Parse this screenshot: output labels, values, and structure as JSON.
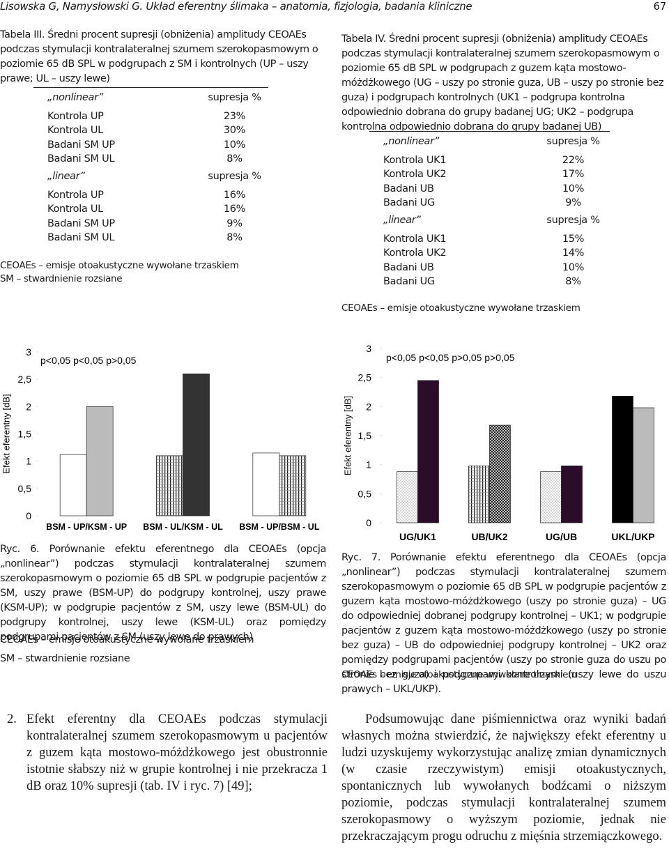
{
  "header": {
    "text": "Lisowska G, Namysłowski G.  Układ eferentny ślimaka – anatomia, fizjologia, badania kliniczne",
    "page": "67"
  },
  "table3": {
    "caption": "Tabela III. Średni procent supresji (obniżenia) amplitudy CEOAEs podczas stymulacji kontralateralnej szumem szerokopasmowym o poziomie 65 dB SPL w podgrupach z SM i kontrolnych (UP – uszy prawe; UL – uszy lewe)",
    "sections": [
      {
        "head": [
          "„nonlinear”",
          "supresja %"
        ],
        "rows": [
          [
            "Kontrola UP",
            "23%"
          ],
          [
            "Kontrola UL",
            "30%"
          ],
          [
            "Badani SM UP",
            "10%"
          ],
          [
            "Badani SM UL",
            "8%"
          ]
        ]
      },
      {
        "head": [
          "„linear”",
          "supresja %"
        ],
        "rows": [
          [
            "Kontrola UP",
            "16%"
          ],
          [
            "Kontrola UL",
            "16%"
          ],
          [
            "Badani SM UP",
            "9%"
          ],
          [
            "Badani SM UL",
            "8%"
          ]
        ]
      }
    ],
    "notes": [
      "CEOAEs – emisje otoakustyczne wywołane trzaskiem",
      "SM – stwardnienie rozsiane"
    ]
  },
  "table4": {
    "caption": "Tabela IV. Średni procent supresji (obniżenia) amplitudy CEOAEs podczas stymulacji kontralateralnej szumem szerokopasmowym o poziomie 65 dB SPL w podgrupach z guzem kąta mostowo-móżdżkowego (UG – uszy po stronie guza, UB – uszy po stronie bez guza) i podgrupach kontrolnych (UK1 – podgrupa kontrolna odpowiednio dobrana do grupy badanej UG; UK2 – podgrupa kontrolna odpowiednio dobrana do grupy badanej UB)",
    "sections": [
      {
        "head": [
          "„nonlinear”",
          "supresja %"
        ],
        "rows": [
          [
            "Kontrola UK1",
            "22%"
          ],
          [
            "Kontrola UK2",
            "17%"
          ],
          [
            "Badani UB",
            "10%"
          ],
          [
            "Badani UG",
            "9%"
          ]
        ]
      },
      {
        "head": [
          "„linear”",
          "supresja %"
        ],
        "rows": [
          [
            "Kontrola UK1",
            "15%"
          ],
          [
            "Kontrola UK2",
            "14%"
          ],
          [
            "Badani UB",
            "10%"
          ],
          [
            "Badani UG",
            "8%"
          ]
        ]
      }
    ],
    "notes": [
      "CEOAEs – emisje otoakustyczne wywołane trzaskiem"
    ]
  },
  "chart_data": [
    {
      "type": "bar",
      "y_label": "Efekt eferentny [dB]",
      "annotation": "p<0,05 p<0,05 p>0,05",
      "categories": [
        "BSM - UP/KSM - UP",
        "BSM - UL/KSM - UL",
        "BSM - UP/BSM - UL"
      ],
      "series": [
        {
          "colors": [
            "#ffffff",
            "vlines",
            "#ffffff"
          ],
          "values": [
            1.12,
            1.1,
            1.15
          ]
        },
        {
          "colors": [
            "#bbbbbb",
            "#333333",
            "vlines"
          ],
          "values": [
            2.0,
            2.6,
            1.1
          ]
        }
      ],
      "ylim": [
        0,
        3
      ],
      "yticks": [
        0,
        {
          "value": 0.5,
          "label": "0,5"
        },
        1,
        {
          "value": 1.5,
          "label": "1,5"
        },
        2,
        {
          "value": 2.5,
          "label": "2,5"
        },
        3
      ],
      "grid": false
    },
    {
      "type": "bar",
      "y_label": "Efekt eferentny [dB]",
      "annotation": "p<0,05 p<0,05 p>0,05 p>0,05",
      "categories": [
        "UG/UK1",
        "UB/UK2",
        "UG/UB",
        "UKL/UKP"
      ],
      "series": [
        {
          "colors": [
            "dots",
            "vlines",
            "dots",
            "#000000"
          ],
          "values": [
            0.88,
            0.98,
            0.88,
            2.18
          ]
        },
        {
          "colors": [
            "#2b0c2b",
            "cross",
            "#2b0c2b",
            "#bbbbbb"
          ],
          "values": [
            2.45,
            1.68,
            0.98,
            1.98
          ]
        }
      ],
      "ylim": [
        0,
        3
      ],
      "yticks": [
        0,
        {
          "value": 0.5,
          "label": "0,5"
        },
        1,
        {
          "value": 1.5,
          "label": "1,5"
        },
        2,
        {
          "value": 2.5,
          "label": "2,5"
        },
        3
      ],
      "grid": false
    }
  ],
  "figure6": {
    "caption": "Ryc. 6. Porównanie efektu eferentnego dla CEOAEs (opcja „nonlinear”) podczas stymulacji kontralateralnej szumem szerokopasmowym o poziomie 65 dB SPL w podgrupie pacjentów z SM, uszy prawe (BSM-UP) do podgrupy kontrolnej, uszy prawe (KSM-UP); w podgrupie pacjentów z SM, uszy lewe (BSM-UL) do podgrupy kontrolnej, uszy lewe (KSM-UL) oraz pomiędzy podgrupami pacjentów z SM (uszy lewe do prawych)",
    "notes": [
      "CEOAEs – emisje otoakustyczne wywołane trzaskiem",
      "SM – stwardnienie rozsiane"
    ]
  },
  "figure7": {
    "caption": "Ryc. 7. Porównanie efektu eferentnego dla CEOAEs (opcja „nonlinear”) podczas stymulacji kontralateralnej szumem szerokopasmowym o poziomie 65 dB SPL w podgrupie pacjentów z guzem kąta mostowo-móżdżkowego (uszy po stronie guza) – UG do odpowiedniej dobranej podgrupy kontrolnej – UK1; w podgrupie pacjentów z guzem kąta mostowo-móżdżkowego (uszy po stronie bez guza) – UB do odpowiedniej podgrupy kontrolnej – UK2 oraz pomiędzy podgrupami pacjentów (uszy po stronie guza do uszu po stronie bez guza) i podgrupami kontrolnymi (uszy lewe do uszu prawych – UKL/UKP).",
    "notes": [
      "CEOAEs – emisje otoakustyczne wywołane trzaskiem"
    ]
  },
  "body": {
    "left": {
      "number": "2.",
      "text": "Efekt eferentny dla CEOAEs podczas stymulacji kontralateralnej szumem szerokopasmowym u pacjentów z guzem kąta mostowo-móżdżkowego jest obustronnie istotnie słabszy niż w grupie kontrolnej i nie przekracza 1 dB oraz 10% supresji (tab. IV i ryc. 7) [49];"
    },
    "right": "Podsumowując dane piśmiennictwa oraz wyniki badań własnych można stwierdzić, że największy efekt eferentny u ludzi uzyskujemy wykorzystując analizę zmian dynamicznych (w czasie rzeczywistym) emisji otoakustycznych, spontanicznych lub wywołanych bodźcami o niższym poziomie, podczas stymulacji kontralateralnej szumem szerokopasmowy o wyższym poziomie, jednak nie przekraczającym progu odruchu z mięśnia strzemiączkowego."
  }
}
